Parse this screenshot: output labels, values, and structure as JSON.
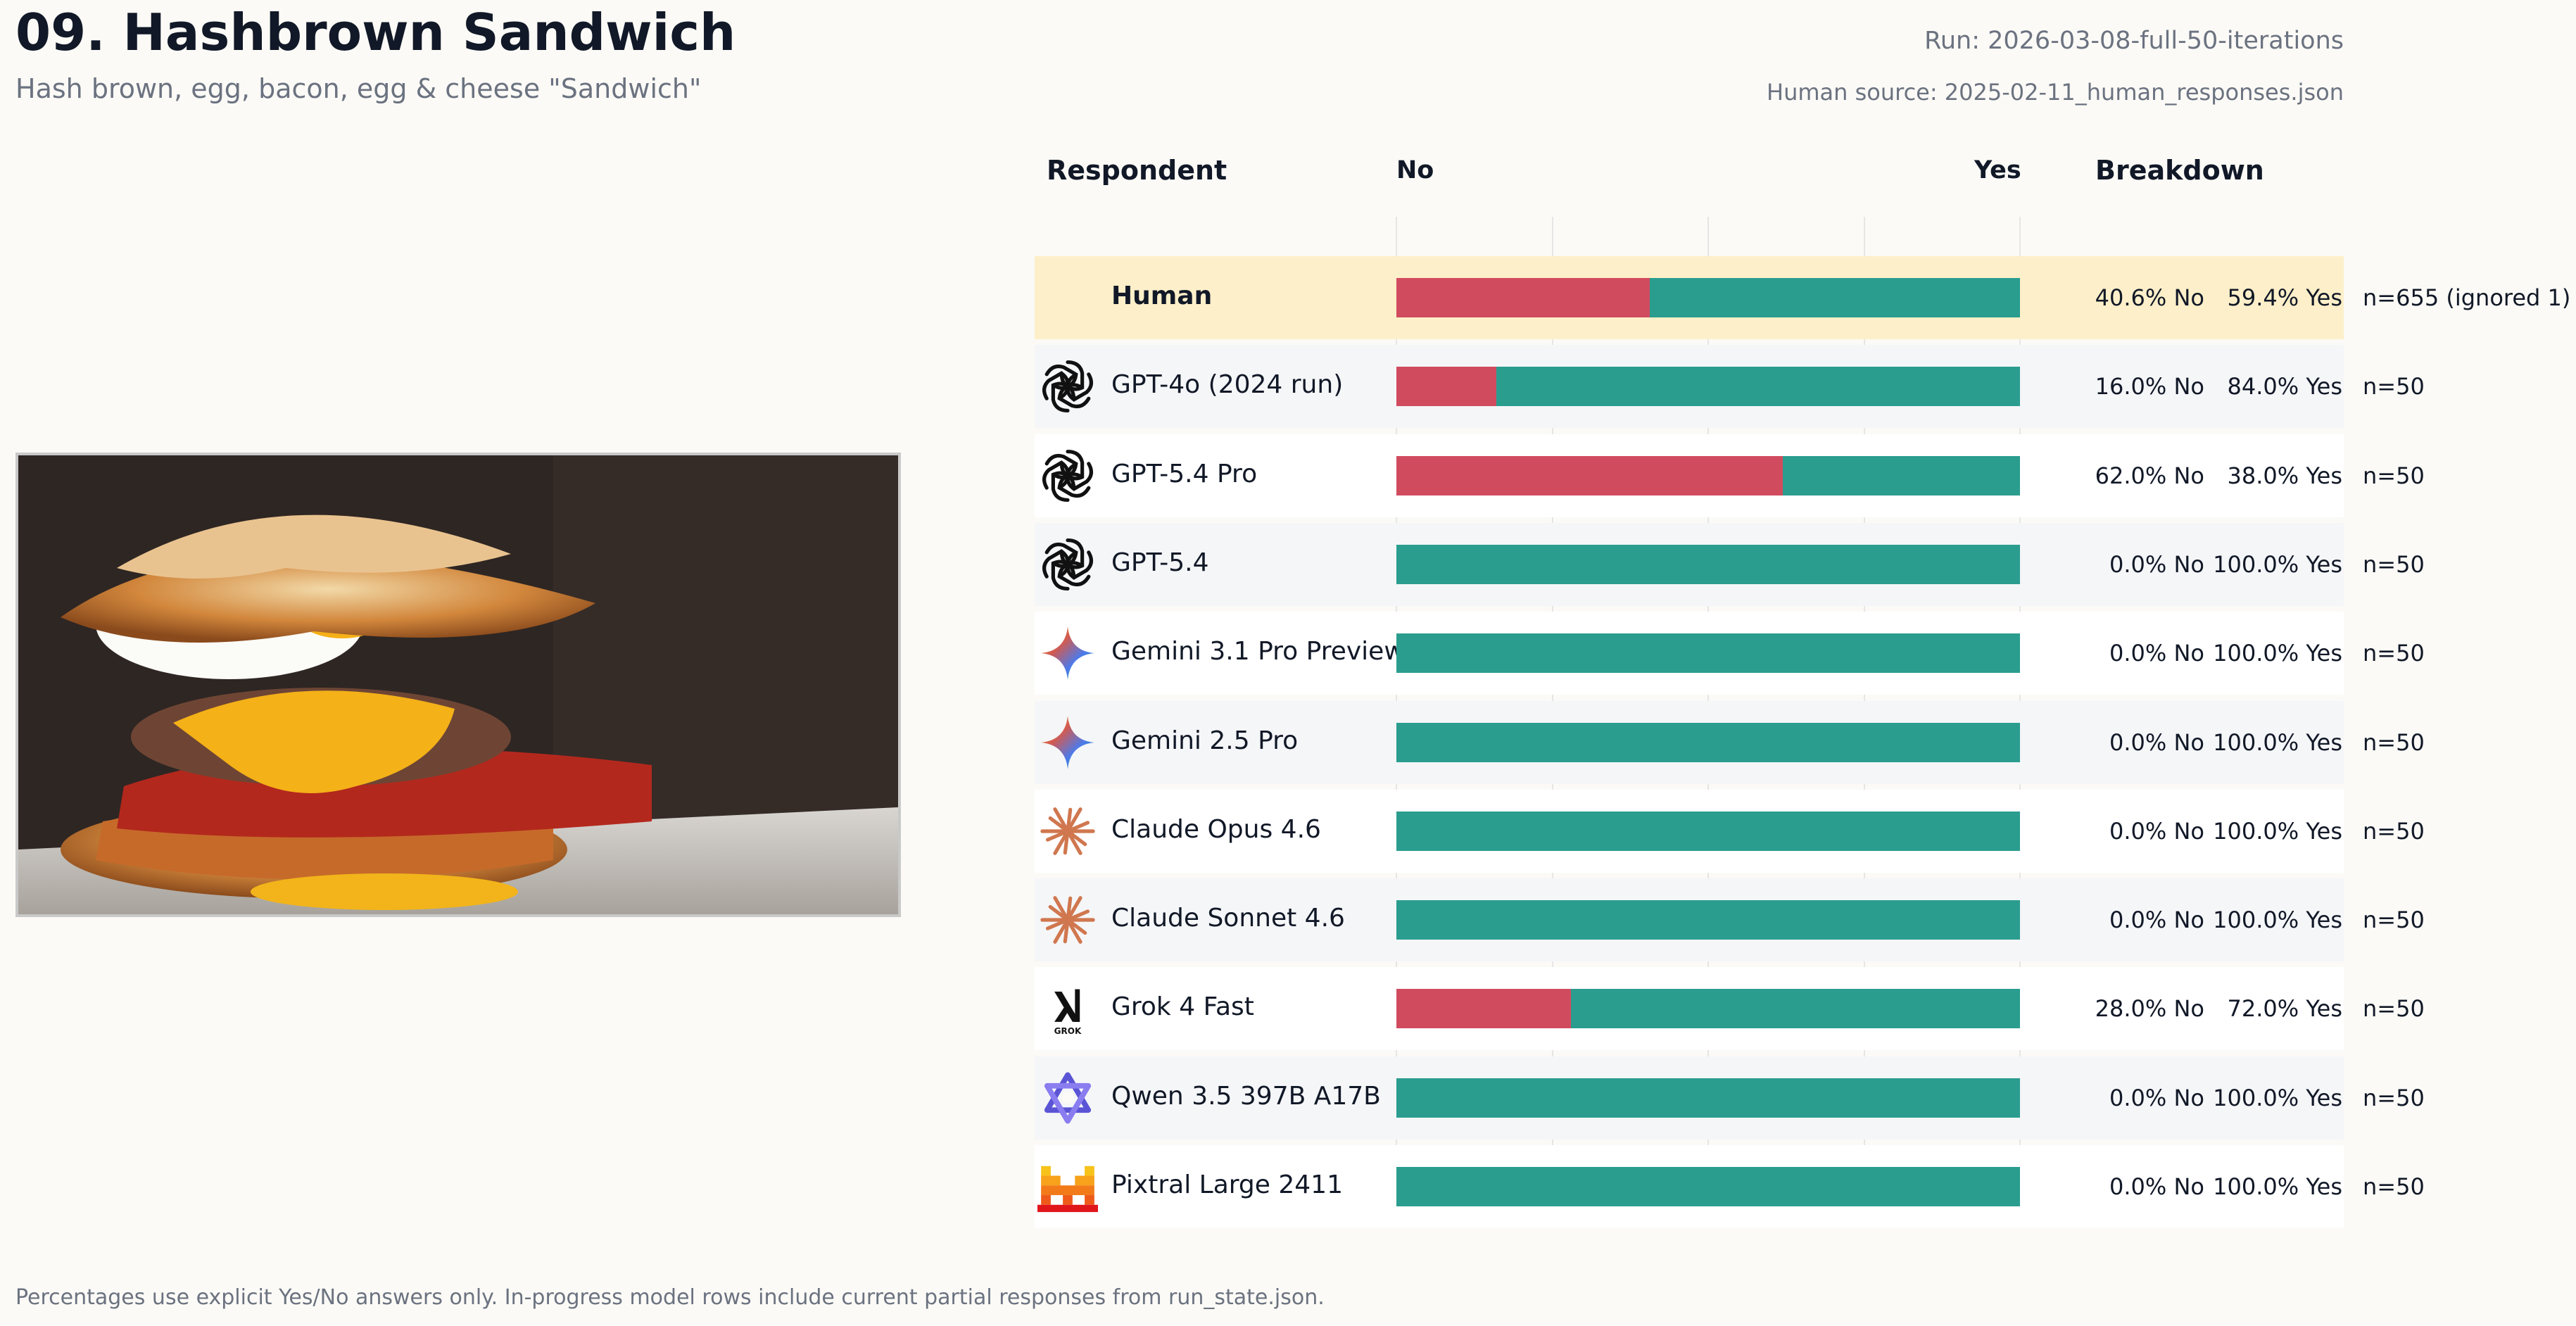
{
  "header": {
    "title": "09. Hashbrown Sandwich",
    "subtitle": "Hash brown, egg, bacon, egg & cheese \"Sandwich\"",
    "run": "Run: 2026-03-08-full-50-iterations",
    "human_source": "Human source: 2025-02-11_human_responses.json"
  },
  "footer": "Percentages use explicit Yes/No answers only. In-progress model rows include current partial responses from run_state.json.",
  "colors": {
    "no": "#d14b5f",
    "yes": "#2a9d8f",
    "human_highlight": "#fdefc9",
    "row_alt": "#f5f6f8",
    "row": "#ffffff"
  },
  "chart_data": {
    "type": "bar",
    "orientation": "horizontal",
    "stacked": true,
    "columns": {
      "respondent": "Respondent",
      "no": "No",
      "yes": "Yes",
      "breakdown": "Breakdown"
    },
    "rows": [
      {
        "name": "Human",
        "icon": "",
        "no": 40.6,
        "yes": 59.4,
        "no_label": "40.6% No",
        "yes_label": "59.4% Yes",
        "n_label": "n=655 (ignored 1)",
        "highlight": true
      },
      {
        "name": "GPT-4o (2024 run)",
        "icon": "openai-icon",
        "no": 16.0,
        "yes": 84.0,
        "no_label": "16.0% No",
        "yes_label": "84.0% Yes",
        "n_label": "n=50"
      },
      {
        "name": "GPT-5.4 Pro",
        "icon": "openai-icon",
        "no": 62.0,
        "yes": 38.0,
        "no_label": "62.0% No",
        "yes_label": "38.0% Yes",
        "n_label": "n=50"
      },
      {
        "name": "GPT-5.4",
        "icon": "openai-icon",
        "no": 0.0,
        "yes": 100.0,
        "no_label": "0.0% No",
        "yes_label": "100.0% Yes",
        "n_label": "n=50"
      },
      {
        "name": "Gemini 3.1 Pro Preview",
        "icon": "gemini-icon",
        "no": 0.0,
        "yes": 100.0,
        "no_label": "0.0% No",
        "yes_label": "100.0% Yes",
        "n_label": "n=50"
      },
      {
        "name": "Gemini 2.5 Pro",
        "icon": "gemini-icon",
        "no": 0.0,
        "yes": 100.0,
        "no_label": "0.0% No",
        "yes_label": "100.0% Yes",
        "n_label": "n=50"
      },
      {
        "name": "Claude Opus 4.6",
        "icon": "claude-icon",
        "no": 0.0,
        "yes": 100.0,
        "no_label": "0.0% No",
        "yes_label": "100.0% Yes",
        "n_label": "n=50"
      },
      {
        "name": "Claude Sonnet 4.6",
        "icon": "claude-icon",
        "no": 0.0,
        "yes": 100.0,
        "no_label": "0.0% No",
        "yes_label": "100.0% Yes",
        "n_label": "n=50"
      },
      {
        "name": "Grok 4 Fast",
        "icon": "grok-icon",
        "no": 28.0,
        "yes": 72.0,
        "no_label": "28.0% No",
        "yes_label": "72.0% Yes",
        "n_label": "n=50"
      },
      {
        "name": "Qwen 3.5 397B A17B",
        "icon": "qwen-icon",
        "no": 0.0,
        "yes": 100.0,
        "no_label": "0.0% No",
        "yes_label": "100.0% Yes",
        "n_label": "n=50"
      },
      {
        "name": "Pixtral Large 2411",
        "icon": "mistral-icon",
        "no": 0.0,
        "yes": 100.0,
        "no_label": "0.0% No",
        "yes_label": "100.0% Yes",
        "n_label": "n=50"
      }
    ],
    "xlim": [
      0,
      100
    ],
    "grid": true,
    "legend": "none"
  },
  "logo_text": {
    "grok": "GROK"
  }
}
